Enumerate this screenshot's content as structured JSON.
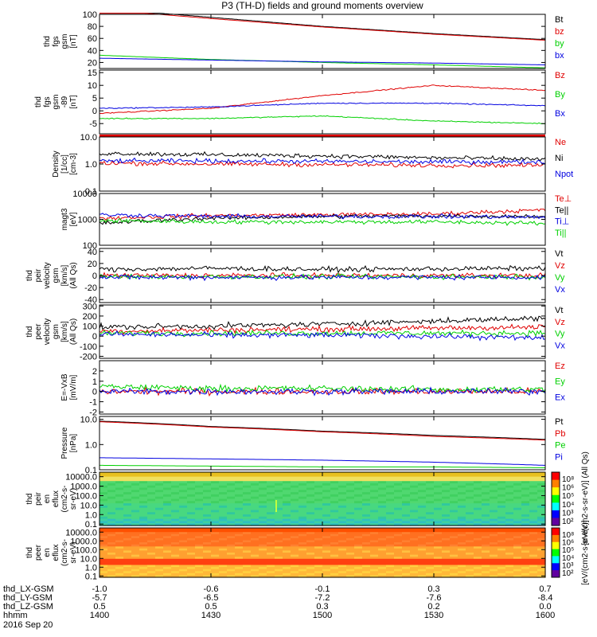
{
  "title": "P3 (TH-D) fields and ground moments overview",
  "colors": {
    "black": "#000000",
    "red": "#e00000",
    "green": "#00d000",
    "blue": "#0000e0"
  },
  "panels": [
    {
      "id": "fgs_gsm",
      "ylabel": [
        "thd",
        "fgs",
        "gsm",
        "[nT]"
      ],
      "scale": "linear",
      "yrange": [
        10,
        100
      ],
      "yticks": [
        "20",
        "40",
        "60",
        "80",
        "100"
      ],
      "ytickvals": [
        20,
        40,
        60,
        80,
        100
      ],
      "legend": [
        {
          "text": "Bt",
          "color": "black"
        },
        {
          "text": "bz",
          "color": "red"
        },
        {
          "text": "by",
          "color": "green"
        },
        {
          "text": "bx",
          "color": "blue"
        }
      ]
    },
    {
      "id": "fgs_dsl",
      "ylabel": [
        "thd",
        "fgs",
        "gsm",
        "-89",
        "[nT]"
      ],
      "scale": "linear",
      "yrange": [
        -9,
        16
      ],
      "yticks": [
        "-5",
        "0",
        "5",
        "10",
        "15"
      ],
      "ytickvals": [
        -5,
        0,
        5,
        10,
        15
      ],
      "legend": [
        {
          "text": "Bz",
          "color": "red"
        },
        {
          "text": "By",
          "color": "green"
        },
        {
          "text": "Bx",
          "color": "blue"
        }
      ]
    },
    {
      "id": "density",
      "ylabel": [
        "Density",
        "[1/cc]",
        "[cm-3]"
      ],
      "scale": "log",
      "yrange": [
        0.1,
        10
      ],
      "yticks": [
        "10.0",
        "1.0",
        "0.1"
      ],
      "ytickvals": [
        10,
        1,
        0.1
      ],
      "legend": [
        {
          "text": "Ne",
          "color": "red"
        },
        {
          "text": "Ni",
          "color": "black"
        },
        {
          "text": "Npot",
          "color": "blue"
        }
      ]
    },
    {
      "id": "temperature",
      "ylabel": [
        "magt3",
        "[eV]"
      ],
      "scale": "log",
      "yrange": [
        100,
        10000
      ],
      "yticks": [
        "10000",
        "1000",
        "100"
      ],
      "ytickvals": [
        10000,
        1000,
        100
      ],
      "legend": [
        {
          "text": "Te⊥",
          "color": "red"
        },
        {
          "text": "Te||",
          "color": "black"
        },
        {
          "text": "Ti⊥",
          "color": "blue"
        },
        {
          "text": "Ti||",
          "color": "green"
        }
      ]
    },
    {
      "id": "vel_pei",
      "ylabel": [
        "thd",
        "peir",
        "velocity",
        "gsm",
        "[km/s]",
        "(All Qs)"
      ],
      "scale": "linear",
      "yrange": [
        -45,
        45
      ],
      "yticks": [
        "40",
        "20",
        "0",
        "-20",
        "-40"
      ],
      "ytickvals": [
        40,
        20,
        0,
        -20,
        -40
      ],
      "legend": [
        {
          "text": "Vt",
          "color": "black"
        },
        {
          "text": "Vz",
          "color": "red"
        },
        {
          "text": "Vy",
          "color": "green"
        },
        {
          "text": "Vx",
          "color": "blue"
        }
      ]
    },
    {
      "id": "vel_per",
      "ylabel": [
        "thd",
        "peer",
        "velocity",
        "gsm",
        "[km/s]",
        "(All Qs)"
      ],
      "scale": "linear",
      "yrange": [
        -220,
        310
      ],
      "yticks": [
        "300",
        "200",
        "100",
        "0",
        "-100",
        "-200"
      ],
      "ytickvals": [
        300,
        200,
        100,
        0,
        -100,
        -200
      ],
      "legend": [
        {
          "text": "Vt",
          "color": "black"
        },
        {
          "text": "Vz",
          "color": "red"
        },
        {
          "text": "Vy",
          "color": "green"
        },
        {
          "text": "Vx",
          "color": "blue"
        }
      ]
    },
    {
      "id": "efield",
      "ylabel": [
        "E=-VxB",
        "[mV/m]"
      ],
      "scale": "linear",
      "yrange": [
        -2.2,
        3
      ],
      "yticks": [
        "2",
        "1",
        "0",
        "-1",
        "-2"
      ],
      "ytickvals": [
        2,
        1,
        0,
        -1,
        -2
      ],
      "legend": [
        {
          "text": "Ez",
          "color": "red"
        },
        {
          "text": "Ey",
          "color": "green"
        },
        {
          "text": "Ex",
          "color": "blue"
        }
      ]
    },
    {
      "id": "pressure",
      "ylabel": [
        "Pressure",
        "[nPa]"
      ],
      "scale": "log",
      "yrange": [
        0.1,
        13
      ],
      "yticks": [
        "10.0",
        "1.0",
        "0.1"
      ],
      "ytickvals": [
        10,
        1,
        0.1
      ],
      "legend": [
        {
          "text": "Pt",
          "color": "black"
        },
        {
          "text": "Pb",
          "color": "red"
        },
        {
          "text": "Pe",
          "color": "green"
        },
        {
          "text": "Pi",
          "color": "blue"
        }
      ]
    },
    {
      "id": "spec_ion",
      "ylabel": [
        "thd",
        "peir",
        "en",
        "eflux",
        "(cm2-s-",
        "sr-eV)"
      ],
      "scale": "log",
      "yrange": [
        0.07,
        30000
      ],
      "yticks": [
        "10000.0",
        "1000.0",
        "100.0",
        "10.0",
        "1.0",
        "0.1"
      ],
      "ytickvals": [
        10000,
        1000,
        100,
        10,
        1,
        0.1
      ],
      "colorbar_ticks": [
        "10⁸",
        "10⁶",
        "10⁵",
        "10⁴",
        "10³",
        "10²"
      ],
      "colorbar_label": "[eV/(cm2-s-sr-eV)] (All Qs)",
      "legend": []
    },
    {
      "id": "spec_ele",
      "ylabel": [
        "thd",
        "peer",
        "en",
        "eflux",
        "(cm2-s-",
        "sr-eV)"
      ],
      "scale": "log",
      "yrange": [
        0.07,
        30000
      ],
      "yticks": [
        "10000.0",
        "1000.0",
        "100.0",
        "10.0",
        "1.0",
        "0.1"
      ],
      "ytickvals": [
        10000,
        1000,
        100,
        10,
        1,
        0.1
      ],
      "colorbar_ticks": [
        "10⁸",
        "10⁶",
        "10⁵",
        "10⁴",
        "10³",
        "10²"
      ],
      "colorbar_label": "[eV/(cm2-s-sr-eV)]",
      "legend": []
    }
  ],
  "xaxis": {
    "rows": [
      {
        "name": "thd_LX-GSM",
        "values": [
          "-1.0",
          "-0.6",
          "-0.1",
          "0.3",
          "0.7"
        ]
      },
      {
        "name": "thd_LY-GSM",
        "values": [
          "-5.7",
          "-6.5",
          "-7.2",
          "-7.6",
          "-8.4"
        ]
      },
      {
        "name": "thd_LZ-GSM",
        "values": [
          "0.5",
          "0.5",
          "0.3",
          "0.2",
          "0.0"
        ]
      },
      {
        "name": "hhmm",
        "values": [
          "1400",
          "1430",
          "1500",
          "1530",
          "1600"
        ]
      }
    ],
    "date": "2016 Sep 20"
  },
  "chart_data": [
    {
      "type": "line",
      "title": "P3 (TH-D) fields and ground moments overview",
      "ylabel": "thd fgs gsm [nT]",
      "xlabel": "hhmm",
      "x": [
        1400,
        1430,
        1500,
        1530,
        1600
      ],
      "ylim": [
        10,
        100
      ],
      "series": [
        {
          "name": "Bt",
          "values": [
            110,
            95,
            80,
            68,
            58
          ]
        },
        {
          "name": "bz",
          "values": [
            108,
            93,
            79,
            67,
            57
          ]
        },
        {
          "name": "by",
          "values": [
            32,
            25,
            20,
            16,
            11
          ]
        },
        {
          "name": "bx",
          "values": [
            27,
            24,
            21,
            19,
            16
          ]
        }
      ]
    },
    {
      "type": "line",
      "ylabel": "thd fgs gsm -89 [nT]",
      "x": [
        1400,
        1430,
        1500,
        1530,
        1600
      ],
      "ylim": [
        -9,
        16
      ],
      "series": [
        {
          "name": "Bz",
          "values": [
            -1,
            1,
            6,
            10,
            8
          ]
        },
        {
          "name": "By",
          "values": [
            -3,
            -3,
            -2,
            -4,
            -5
          ]
        },
        {
          "name": "Bx",
          "values": [
            1,
            1.5,
            3,
            3,
            2
          ]
        }
      ]
    },
    {
      "type": "line",
      "ylabel": "Density [1/cc] [cm-3]",
      "x": [
        1400,
        1430,
        1500,
        1530,
        1600
      ],
      "ylim": [
        0.1,
        10
      ],
      "series": [
        {
          "name": "Ne",
          "values": [
            1.1,
            1.0,
            0.95,
            0.9,
            0.9
          ]
        },
        {
          "name": "Ni",
          "values": [
            2.5,
            2.2,
            2.0,
            1.7,
            1.5
          ]
        },
        {
          "name": "Npot",
          "values": [
            1.3,
            1.3,
            1.25,
            1.2,
            1.2
          ]
        }
      ]
    },
    {
      "type": "line",
      "ylabel": "magt3 [eV]",
      "x": [
        1400,
        1430,
        1500,
        1530,
        1600
      ],
      "ylim": [
        100,
        10000
      ],
      "series": [
        {
          "name": "Te⊥",
          "values": [
            1100,
            1400,
            1500,
            1600,
            2300
          ]
        },
        {
          "name": "Te||",
          "values": [
            700,
            1100,
            1300,
            1350,
            1300
          ]
        },
        {
          "name": "Ti⊥",
          "values": [
            1500,
            1300,
            1300,
            1300,
            1200
          ]
        },
        {
          "name": "Ti||",
          "values": [
            900,
            800,
            800,
            800,
            700
          ]
        }
      ]
    },
    {
      "type": "line",
      "ylabel": "thd peir velocity gsm [km/s] (All Qs)",
      "x": [
        1400,
        1430,
        1500,
        1530,
        1600
      ],
      "ylim": [
        -45,
        45
      ],
      "series": [
        {
          "name": "Vt",
          "values": [
            10,
            12,
            10,
            11,
            12
          ]
        },
        {
          "name": "Vz",
          "values": [
            0,
            0,
            0,
            0,
            0
          ]
        },
        {
          "name": "Vy",
          "values": [
            -2,
            -2,
            -2,
            -2,
            -2
          ]
        },
        {
          "name": "Vx",
          "values": [
            -3,
            -3,
            -3,
            -3,
            -3
          ]
        }
      ]
    },
    {
      "type": "line",
      "ylabel": "thd peer velocity gsm [km/s] (All Qs)",
      "x": [
        1400,
        1430,
        1500,
        1530,
        1600
      ],
      "ylim": [
        -220,
        310
      ],
      "series": [
        {
          "name": "Vt",
          "values": [
            90,
            100,
            120,
            150,
            180
          ]
        },
        {
          "name": "Vz",
          "values": [
            50,
            60,
            70,
            80,
            90
          ]
        },
        {
          "name": "Vy",
          "values": [
            30,
            30,
            30,
            30,
            30
          ]
        },
        {
          "name": "Vx",
          "values": [
            20,
            10,
            10,
            0,
            -20
          ]
        }
      ]
    },
    {
      "type": "line",
      "ylabel": "E=-VxB [mV/m]",
      "x": [
        1400,
        1430,
        1500,
        1530,
        1600
      ],
      "ylim": [
        -2.2,
        3
      ],
      "series": [
        {
          "name": "Ez",
          "values": [
            0,
            0,
            0,
            0,
            0
          ]
        },
        {
          "name": "Ey",
          "values": [
            0.5,
            0.3,
            0.3,
            0.2,
            0.2
          ]
        },
        {
          "name": "Ex",
          "values": [
            0,
            0,
            0,
            0,
            0
          ]
        }
      ]
    },
    {
      "type": "line",
      "ylabel": "Pressure [nPa]",
      "x": [
        1400,
        1430,
        1500,
        1530,
        1600
      ],
      "ylim": [
        0.1,
        13
      ],
      "series": [
        {
          "name": "Pt",
          "values": [
            8.5,
            5.2,
            3.4,
            2.3,
            1.6
          ]
        },
        {
          "name": "Pb",
          "values": [
            8.0,
            4.9,
            3.2,
            2.1,
            1.5
          ]
        },
        {
          "name": "Pe",
          "values": [
            0.15,
            0.14,
            0.13,
            0.13,
            0.12
          ]
        },
        {
          "name": "Pi",
          "values": [
            0.3,
            0.27,
            0.24,
            0.2,
            0.15
          ]
        }
      ]
    },
    {
      "type": "heatmap",
      "ylabel": "thd peir en eflux (cm2-s-sr-eV)",
      "x": [
        1400,
        1430,
        1500,
        1530,
        1600
      ],
      "ylim": [
        0.07,
        30000
      ],
      "colorbar": "[eV/(cm2-s-sr-eV)] (All Qs)"
    },
    {
      "type": "heatmap",
      "ylabel": "thd peer en eflux (cm2-s-sr-eV)",
      "x": [
        1400,
        1430,
        1500,
        1530,
        1600
      ],
      "ylim": [
        0.07,
        30000
      ],
      "colorbar": "[eV/(cm2-s-sr-eV)]"
    }
  ]
}
